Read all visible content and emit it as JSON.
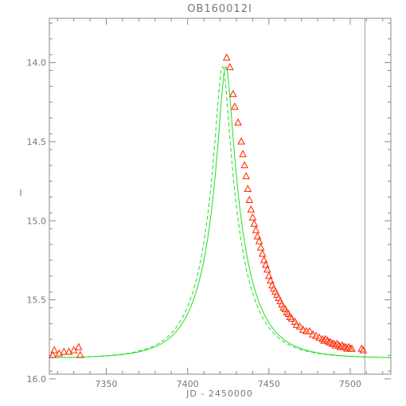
{
  "chart_data": {
    "type": "scatter",
    "title": "OB160012I",
    "xlabel": "JD - 2450000",
    "ylabel": "I",
    "xlim": [
      7315,
      7525
    ],
    "ylim": [
      15.97,
      13.72
    ],
    "y_inverted": true,
    "grid": false,
    "x_ticks": [
      "7350",
      "7400",
      "7450",
      "7500"
    ],
    "x_tick_values": [
      7350,
      7400,
      7450,
      7500
    ],
    "y_ticks": [
      "14.0",
      "14.5",
      "15.0",
      "15.5",
      "16.0"
    ],
    "y_tick_values": [
      14.0,
      14.5,
      15.0,
      15.5,
      16.0
    ],
    "vertical_line_x": 7509,
    "model_solid": {
      "color": "#22dd22",
      "style": "solid",
      "t0": 7423.5,
      "u0": 0.15,
      "tE": 25,
      "baseline": 15.87,
      "blend_fraction": 0.78
    },
    "model_dashed": {
      "color": "#22dd22",
      "style": "dashed",
      "t0": 7421.5,
      "u0": 0.15,
      "tE": 25,
      "baseline": 15.87,
      "blend_fraction": 0.78
    },
    "series": [
      {
        "marker": "triangle",
        "edge_color": "#ff2020",
        "fill_color": "#ffff66",
        "points": [
          [
            7317,
            15.85
          ],
          [
            7318,
            15.82
          ],
          [
            7321,
            15.84
          ],
          [
            7324,
            15.83
          ],
          [
            7327,
            15.83
          ],
          [
            7330,
            15.82
          ],
          [
            7333,
            15.8
          ],
          [
            7334,
            15.85
          ],
          [
            7424,
            13.97
          ],
          [
            7426,
            14.03
          ],
          [
            7428,
            14.2
          ],
          [
            7429,
            14.28
          ],
          [
            7431,
            14.38
          ],
          [
            7433,
            14.5
          ],
          [
            7434,
            14.58
          ],
          [
            7435,
            14.65
          ],
          [
            7436,
            14.72
          ],
          [
            7437,
            14.8
          ],
          [
            7438,
            14.87
          ],
          [
            7439,
            14.93
          ],
          [
            7440,
            14.98
          ],
          [
            7441,
            15.02
          ],
          [
            7442,
            15.06
          ],
          [
            7443,
            15.1
          ],
          [
            7444,
            15.13
          ],
          [
            7445,
            15.17
          ],
          [
            7446,
            15.21
          ],
          [
            7447,
            15.25
          ],
          [
            7448,
            15.28
          ],
          [
            7449,
            15.31
          ],
          [
            7450,
            15.35
          ],
          [
            7451,
            15.38
          ],
          [
            7452,
            15.41
          ],
          [
            7453,
            15.43
          ],
          [
            7454,
            15.45
          ],
          [
            7455,
            15.47
          ],
          [
            7456,
            15.49
          ],
          [
            7457,
            15.51
          ],
          [
            7458,
            15.53
          ],
          [
            7459,
            15.55
          ],
          [
            7460,
            15.56
          ],
          [
            7461,
            15.58
          ],
          [
            7462,
            15.59
          ],
          [
            7463,
            15.61
          ],
          [
            7464,
            15.62
          ],
          [
            7466,
            15.64
          ],
          [
            7467,
            15.66
          ],
          [
            7469,
            15.67
          ],
          [
            7471,
            15.69
          ],
          [
            7473,
            15.7
          ],
          [
            7475,
            15.7
          ],
          [
            7477,
            15.72
          ],
          [
            7479,
            15.73
          ],
          [
            7481,
            15.74
          ],
          [
            7483,
            15.75
          ],
          [
            7484,
            15.76
          ],
          [
            7485,
            15.75
          ],
          [
            7486,
            15.76
          ],
          [
            7487,
            15.77
          ],
          [
            7488,
            15.77
          ],
          [
            7489,
            15.78
          ],
          [
            7490,
            15.78
          ],
          [
            7491,
            15.79
          ],
          [
            7492,
            15.78
          ],
          [
            7493,
            15.79
          ],
          [
            7494,
            15.8
          ],
          [
            7495,
            15.79
          ],
          [
            7496,
            15.8
          ],
          [
            7497,
            15.8
          ],
          [
            7498,
            15.81
          ],
          [
            7499,
            15.8
          ],
          [
            7500,
            15.81
          ],
          [
            7501,
            15.81
          ],
          [
            7507,
            15.81
          ],
          [
            7508,
            15.82
          ]
        ]
      }
    ]
  }
}
